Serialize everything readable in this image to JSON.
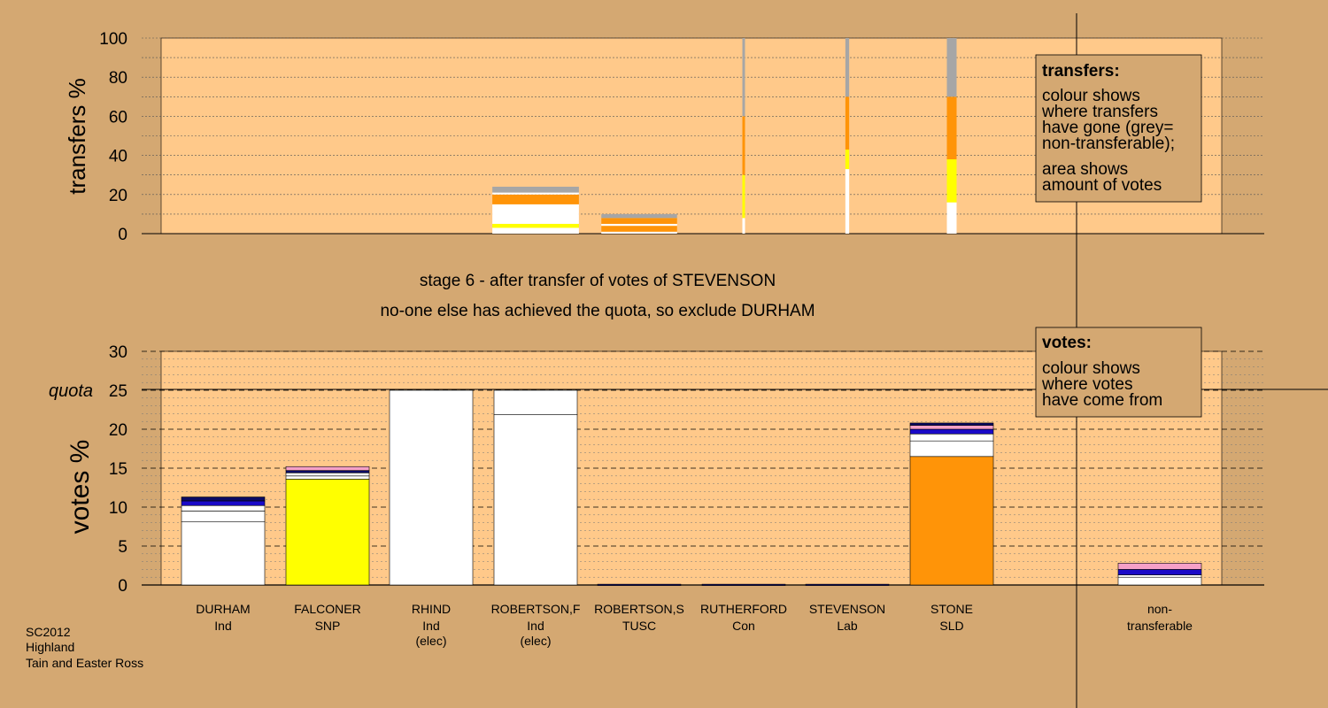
{
  "colors": {
    "background": "#d4a872",
    "panel": "#ffc98a",
    "white": "#ffffff",
    "yellow": "#ffff00",
    "orange": "#ff9408",
    "grey": "#a6a6a6",
    "blue": "#1a0ac8",
    "navy": "#0a0a64",
    "pink": "#f5a0c8"
  },
  "stage": {
    "line1": "stage 6 - after transfer of votes of STEVENSON",
    "line2": "no-one else has achieved the quota, so exclude DURHAM"
  },
  "footer": [
    "SC2012",
    "Highland",
    "Tain and Easter Ross"
  ],
  "candidates": [
    {
      "name": "DURHAM",
      "party": "Ind",
      "note": ""
    },
    {
      "name": "FALCONER",
      "party": "SNP",
      "note": ""
    },
    {
      "name": "RHIND",
      "party": "Ind",
      "note": "(elec)"
    },
    {
      "name": "ROBERTSON,F",
      "party": "Ind",
      "note": "(elec)"
    },
    {
      "name": "ROBERTSON,S",
      "party": "TUSC",
      "note": ""
    },
    {
      "name": "RUTHERFORD",
      "party": "Con",
      "note": ""
    },
    {
      "name": "STEVENSON",
      "party": "Lab",
      "note": ""
    },
    {
      "name": "STONE",
      "party": "SLD",
      "note": ""
    },
    {
      "name": "non-",
      "party": "transferable",
      "note": ""
    }
  ],
  "legend_transfers": {
    "title": "transfers:",
    "lines": [
      "colour shows",
      "where transfers",
      "have gone (grey=",
      "non-transferable);",
      "area shows",
      "amount of votes"
    ]
  },
  "legend_votes": {
    "title": "votes:",
    "lines": [
      "colour shows",
      "where votes",
      "have come from"
    ]
  },
  "chart_data": [
    {
      "type": "bar",
      "name": "transfers",
      "ylabel": "transfers %",
      "ylim": [
        0,
        100
      ],
      "yticks": [
        0,
        20,
        40,
        60,
        80,
        100
      ],
      "bars": [
        {
          "position": 3,
          "width_fraction": 0.8,
          "segments": [
            {
              "color": "white",
              "from": 0,
              "to": 3
            },
            {
              "color": "yellow",
              "from": 3,
              "to": 5
            },
            {
              "color": "white",
              "from": 5,
              "to": 15
            },
            {
              "color": "orange",
              "from": 15,
              "to": 20
            },
            {
              "color": "white",
              "from": 20,
              "to": 21
            },
            {
              "color": "grey",
              "from": 21,
              "to": 24
            }
          ]
        },
        {
          "position": 4,
          "width_fraction": 0.7,
          "segments": [
            {
              "color": "white",
              "from": 0,
              "to": 1
            },
            {
              "color": "orange",
              "from": 1,
              "to": 4
            },
            {
              "color": "white",
              "from": 4,
              "to": 5
            },
            {
              "color": "orange",
              "from": 5,
              "to": 8
            },
            {
              "color": "grey",
              "from": 8,
              "to": 10
            }
          ]
        },
        {
          "position": 5,
          "width_fraction": 0.02,
          "segments": [
            {
              "color": "white",
              "from": 0,
              "to": 8
            },
            {
              "color": "yellow",
              "from": 8,
              "to": 30
            },
            {
              "color": "orange",
              "from": 30,
              "to": 60
            },
            {
              "color": "grey",
              "from": 60,
              "to": 100
            }
          ]
        },
        {
          "position": 6,
          "width_fraction": 0.035,
          "segments": [
            {
              "color": "white",
              "from": 0,
              "to": 33
            },
            {
              "color": "yellow",
              "from": 33,
              "to": 43
            },
            {
              "color": "orange",
              "from": 43,
              "to": 70
            },
            {
              "color": "grey",
              "from": 70,
              "to": 100
            }
          ]
        },
        {
          "position": 7,
          "width_fraction": 0.09,
          "segments": [
            {
              "color": "white",
              "from": 0,
              "to": 16
            },
            {
              "color": "yellow",
              "from": 16,
              "to": 38
            },
            {
              "color": "orange",
              "from": 38,
              "to": 70
            },
            {
              "color": "grey",
              "from": 70,
              "to": 100
            }
          ]
        }
      ]
    },
    {
      "type": "bar",
      "name": "votes",
      "ylabel": "votes %",
      "ylim": [
        0,
        30
      ],
      "yticks": [
        0,
        5,
        10,
        15,
        20,
        25,
        30
      ],
      "quota": 25,
      "quota_label": "quota",
      "categories": [
        "DURHAM",
        "FALCONER",
        "RHIND",
        "ROBERTSON,F",
        "ROBERTSON,S",
        "RUTHERFORD",
        "STEVENSON",
        "STONE",
        "non-transferable"
      ],
      "totals": [
        11.3,
        15.2,
        25.0,
        25.0,
        0.1,
        0.1,
        0.1,
        20.8,
        2.8
      ],
      "bars": [
        {
          "position": 0,
          "segments": [
            {
              "color": "white",
              "from": 0,
              "to": 8.1
            },
            {
              "color": "white",
              "from": 8.1,
              "to": 9.5
            },
            {
              "color": "white",
              "from": 9.5,
              "to": 10.2
            },
            {
              "color": "blue",
              "from": 10.2,
              "to": 10.8
            },
            {
              "color": "navy",
              "from": 10.8,
              "to": 11.3
            }
          ]
        },
        {
          "position": 1,
          "segments": [
            {
              "color": "yellow",
              "from": 0,
              "to": 13.6
            },
            {
              "color": "white",
              "from": 13.6,
              "to": 14.0
            },
            {
              "color": "white",
              "from": 14.0,
              "to": 14.4
            },
            {
              "color": "navy",
              "from": 14.4,
              "to": 14.7
            },
            {
              "color": "pink",
              "from": 14.7,
              "to": 15.2
            }
          ]
        },
        {
          "position": 2,
          "segments": [
            {
              "color": "white",
              "from": 0,
              "to": 25.0
            }
          ]
        },
        {
          "position": 3,
          "segments": [
            {
              "color": "white",
              "from": 0,
              "to": 21.9
            },
            {
              "color": "white",
              "from": 21.9,
              "to": 25.0
            }
          ]
        },
        {
          "position": 4,
          "segments": [
            {
              "color": "navy",
              "from": 0,
              "to": 0.1
            }
          ]
        },
        {
          "position": 5,
          "segments": [
            {
              "color": "navy",
              "from": 0,
              "to": 0.1
            }
          ]
        },
        {
          "position": 6,
          "segments": [
            {
              "color": "navy",
              "from": 0,
              "to": 0.1
            }
          ]
        },
        {
          "position": 7,
          "segments": [
            {
              "color": "orange",
              "from": 0,
              "to": 16.5
            },
            {
              "color": "white",
              "from": 16.5,
              "to": 18.5
            },
            {
              "color": "white",
              "from": 18.5,
              "to": 19.4
            },
            {
              "color": "blue",
              "from": 19.4,
              "to": 20.0
            },
            {
              "color": "pink",
              "from": 20.0,
              "to": 20.5
            },
            {
              "color": "navy",
              "from": 20.5,
              "to": 20.8
            }
          ]
        },
        {
          "position": 8,
          "segments": [
            {
              "color": "white",
              "from": 0,
              "to": 1.0
            },
            {
              "color": "white",
              "from": 1.0,
              "to": 1.3
            },
            {
              "color": "blue",
              "from": 1.3,
              "to": 2.0
            },
            {
              "color": "pink",
              "from": 2.0,
              "to": 2.8
            }
          ]
        }
      ]
    }
  ]
}
